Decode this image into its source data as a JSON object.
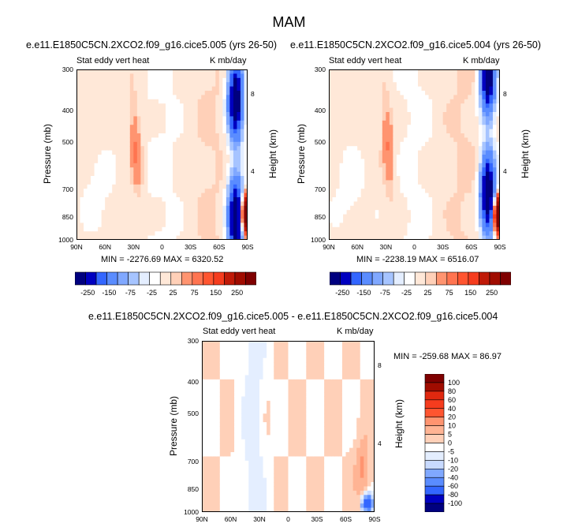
{
  "figure": {
    "title": "MAM",
    "palette_21": [
      "#00007f",
      "#0000c0",
      "#1638ff",
      "#3366ff",
      "#5a8cff",
      "#80a8ff",
      "#a6c4ff",
      "#c8daff",
      "#e4eeff",
      "#ffffff",
      "#ffe8d8",
      "#ffd0b8",
      "#ffb494",
      "#ff9470",
      "#ff7450",
      "#ff5530",
      "#f53c1e",
      "#e0280f",
      "#c01a08",
      "#a00c00",
      "#7f0000"
    ]
  },
  "panels": [
    {
      "id": "left",
      "title": "e.e11.E1850C5CN.2XCO2.f09_g16.cice5.005 (yrs 26-50)",
      "left_label": "Stat eddy vert heat",
      "right_label": "K mb/day",
      "ylabel": "Pressure (mb)",
      "ylabel_right": "Height (km)",
      "stats": "MIN = -2276.69  MAX = 6320.52"
    },
    {
      "id": "right",
      "title": "e.e11.E1850C5CN.2XCO2.f09_g16.cice5.004 (yrs 26-50)",
      "left_label": "Stat eddy vert heat",
      "right_label": "K mb/day",
      "ylabel": "Pressure (mb)",
      "ylabel_right": "Height (km)",
      "stats": "MIN = -2238.19  MAX = 6516.07"
    },
    {
      "id": "diff",
      "title": "e.e11.E1850C5CN.2XCO2.f09_g16.cice5.005 - e.e11.E1850C5CN.2XCO2.f09_g16.cice5.004",
      "left_label": "Stat eddy vert heat",
      "right_label": "K mb/day",
      "ylabel": "Pressure (mb)",
      "ylabel_right": "Height (km)",
      "stats": "MIN = -259.68  MAX =  86.97"
    }
  ],
  "chart_data": {
    "type": "heatmap",
    "x_ticks": [
      "90N",
      "60N",
      "30N",
      "0",
      "30S",
      "60S",
      "90S"
    ],
    "x_range": [
      "90N",
      "90S"
    ],
    "y_ticks": [
      "300",
      "400",
      "500",
      "700",
      "850",
      "1000"
    ],
    "y_range_mb": [
      1000,
      300
    ],
    "y_scale": "log",
    "y_right_ticks": [
      "8",
      "4"
    ],
    "colorbar_panels": {
      "levels": [
        -250,
        -200,
        -150,
        -100,
        -75,
        -50,
        -25,
        -10,
        10,
        25,
        50,
        75,
        100,
        150,
        200,
        250
      ],
      "labels": [
        "-250",
        "-150",
        "-75",
        "-25",
        "25",
        "75",
        "150",
        "250"
      ]
    },
    "colorbar_diff": {
      "labels": [
        "100",
        "80",
        "60",
        "40",
        "20",
        "10",
        "5",
        "0",
        "-5",
        "-10",
        "-20",
        "-40",
        "-60",
        "-80",
        "-100"
      ]
    },
    "features": "negative (blue) core near 70-85S throughout the column; positive (red) streak near 30N in mid-troposphere; weak values elsewhere"
  }
}
